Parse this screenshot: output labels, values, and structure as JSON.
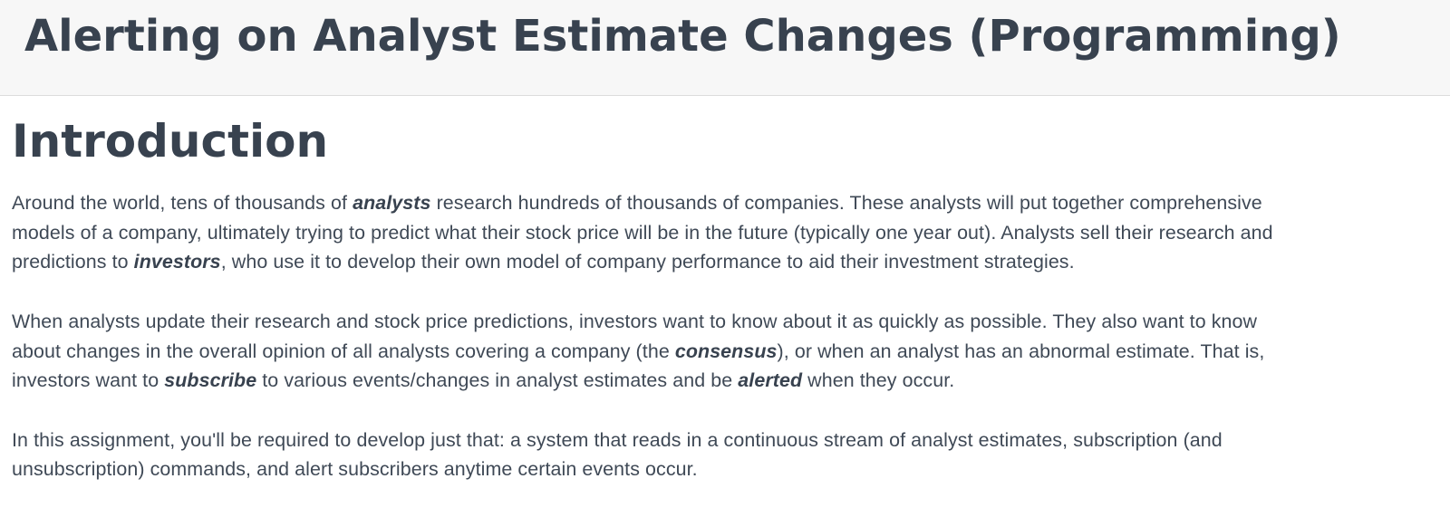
{
  "header": {
    "title": "Alerting on Analyst Estimate Changes (Programming)"
  },
  "section": {
    "heading": "Introduction",
    "paragraphs": [
      {
        "lines": [
          [
            "Around the world, tens of thousands of ",
            "analysts",
            " research hundreds of thousands of companies. These analysts will put together comprehensive"
          ],
          [
            "models of a company, ultimately trying to predict what their stock price will be in the future (typically one year out). Analysts sell their research and"
          ],
          [
            "predictions to ",
            "investors",
            ", who use it to develop their own model of company performance to aid their investment strategies."
          ]
        ]
      },
      {
        "lines": [
          [
            "When analysts update their research and stock price predictions, investors want to know about it as quickly as possible. They also want to know"
          ],
          [
            "about changes in the overall opinion of all analysts covering a company (the ",
            "consensus",
            "), or when an analyst has an abnormal estimate. That is,"
          ],
          [
            "investors want to ",
            "subscribe",
            " to various events/changes in analyst estimates and be ",
            "alerted",
            " when they occur."
          ]
        ]
      },
      {
        "lines": [
          [
            "In this assignment, you'll be required to develop just that: a system that reads in a continuous stream of analyst estimates, subscription (and"
          ],
          [
            "unsubscription) commands, and alert subscribers anytime certain events occur."
          ]
        ]
      }
    ]
  }
}
